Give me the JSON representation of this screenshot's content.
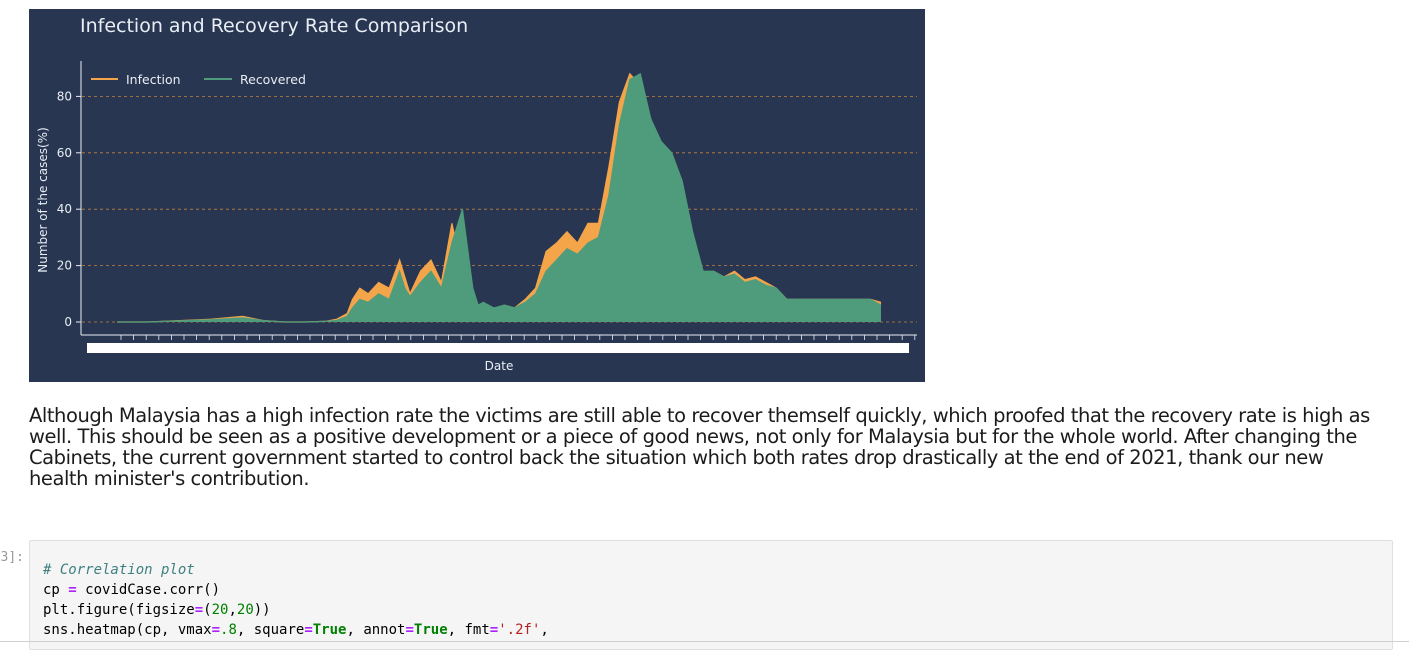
{
  "chart_data": {
    "type": "area",
    "title": "Infection and Recovery Rate Comparison",
    "xlabel": "Date",
    "ylabel": "Number of the cases(%)",
    "ylim": [
      -4,
      92
    ],
    "yticks": [
      0,
      20,
      40,
      60,
      80
    ],
    "grid": "horizontal dashed",
    "legend_position": "top-left",
    "colors": {
      "background": "#283651",
      "Infection": "#f4a449",
      "Recovered": "#4f9c7c",
      "grid": "#c8823c",
      "text": "#e9eef5"
    },
    "x": [
      0,
      30,
      60,
      90,
      120,
      140,
      160,
      180,
      200,
      210,
      220,
      225,
      232,
      240,
      250,
      260,
      270,
      275,
      280,
      290,
      300,
      310,
      320,
      330,
      340,
      345,
      350,
      360,
      370,
      380,
      390,
      400,
      410,
      420,
      430,
      440,
      450,
      460,
      470,
      480,
      490,
      500,
      510,
      520,
      530,
      540,
      550,
      560,
      570,
      580,
      590,
      600,
      610,
      620,
      630,
      640,
      650,
      660,
      670,
      680,
      690,
      700,
      710,
      720,
      730
    ],
    "series": [
      {
        "name": "Infection",
        "values": [
          0,
          0,
          0.5,
          1,
          2,
          0.5,
          0,
          0,
          0.3,
          1,
          3,
          8,
          12,
          10,
          14,
          12,
          22,
          16,
          10,
          18,
          22,
          14,
          35,
          18,
          8,
          4,
          6,
          4,
          6,
          5,
          8,
          12,
          25,
          28,
          32,
          28,
          35,
          35,
          55,
          78,
          88,
          84,
          72,
          60,
          55,
          42,
          26,
          15,
          18,
          16,
          18,
          15,
          16,
          14,
          12,
          8,
          8,
          8,
          8,
          8,
          8,
          8,
          8,
          8,
          7
        ]
      },
      {
        "name": "Recovered",
        "values": [
          0,
          0,
          0.4,
          0.8,
          1.5,
          0.5,
          0,
          0,
          0.2,
          0.6,
          2,
          5,
          8,
          7,
          10,
          8,
          18,
          12,
          9,
          14,
          18,
          12,
          28,
          40,
          12,
          6,
          7,
          5,
          6,
          5,
          7,
          10,
          18,
          22,
          26,
          24,
          28,
          30,
          45,
          70,
          86,
          88,
          72,
          64,
          60,
          50,
          32,
          18,
          18,
          16,
          17,
          14,
          15,
          13,
          12,
          8,
          8,
          8,
          8,
          8,
          8,
          8,
          8,
          8,
          6
        ]
      }
    ]
  },
  "markdown": {
    "paragraph": "Although Malaysia has a high infection rate the victims are still able to recover themself quickly, which proofed that the recovery rate is high as well. This should be seen as a positive development or a piece of good news, not only for Malaysia but for the whole world. After changing the Cabinets, the current government started to control back the situation which both rates drop drastically at the end of 2021, thank our new health minister's contribution."
  },
  "code_cell": {
    "prompt": "3]:",
    "lines": [
      [
        {
          "t": "# Correlation plot",
          "c": "c-comment"
        }
      ],
      [
        {
          "t": "cp "
        },
        {
          "t": "=",
          "c": "c-op"
        },
        {
          "t": " covidCase.corr()"
        }
      ],
      [
        {
          "t": "plt.figure(figsize"
        },
        {
          "t": "=",
          "c": "c-op"
        },
        {
          "t": "("
        },
        {
          "t": "20",
          "c": "c-num"
        },
        {
          "t": ","
        },
        {
          "t": "20",
          "c": "c-num"
        },
        {
          "t": "))"
        }
      ],
      [
        {
          "t": "sns.heatmap(cp, vmax"
        },
        {
          "t": "=",
          "c": "c-op"
        },
        {
          "t": ".8",
          "c": "c-num"
        },
        {
          "t": ", square"
        },
        {
          "t": "=",
          "c": "c-op"
        },
        {
          "t": "True",
          "c": "c-kw"
        },
        {
          "t": ", annot"
        },
        {
          "t": "=",
          "c": "c-op"
        },
        {
          "t": "True",
          "c": "c-kw"
        },
        {
          "t": ", fmt"
        },
        {
          "t": "=",
          "c": "c-op"
        },
        {
          "t": "'.2f'",
          "c": "c-str"
        },
        {
          "t": ","
        }
      ]
    ]
  }
}
